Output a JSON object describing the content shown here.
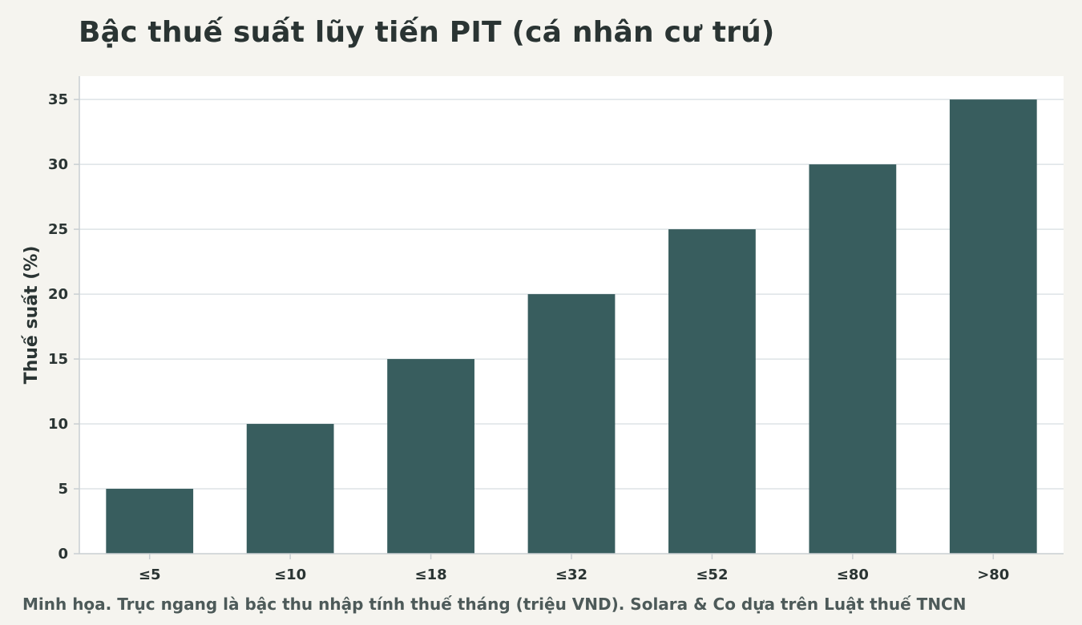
{
  "chart_data": {
    "type": "bar",
    "title": "Bậc thuế suất lũy tiến PIT (cá nhân cư trú)",
    "caption": "Minh họa. Trục ngang là bậc thu nhập tính thuế tháng (triệu VND). Solara & Co dựa trên Luật thuế TNCN",
    "xlabel": "",
    "ylabel": "Thuế suất (%)",
    "categories": [
      "≤5",
      "≤10",
      "≤18",
      "≤32",
      "≤52",
      "≤80",
      ">80"
    ],
    "values": [
      5,
      10,
      15,
      20,
      25,
      30,
      35
    ],
    "ylim": [
      0,
      36.8
    ],
    "yticks": [
      0,
      5,
      10,
      15,
      20,
      25,
      30,
      35
    ],
    "grid": true,
    "legend": "none",
    "colors": {
      "bar": "#385d5e",
      "plot_background": "#ffffff",
      "page_background": "#f5f4ef",
      "grid": "#dde3e6",
      "axis": "#c9cfd2",
      "text": "#2a3433"
    }
  }
}
